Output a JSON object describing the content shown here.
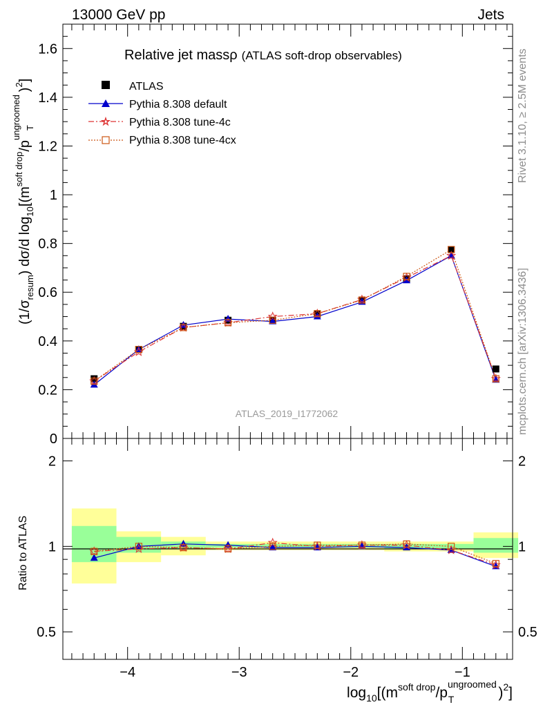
{
  "header": {
    "energy_label": "13000 GeV pp",
    "process_label": "Jets"
  },
  "side_text": {
    "rivet": "Rivet 3.1.10, ≥ 2.5M events",
    "mcplots": "mcplots.cern.ch [arXiv:1306.3436]"
  },
  "watermark": "ATLAS_2019_I1772062",
  "chart_data": [
    {
      "type": "line",
      "title_main": "Relative jet massρ",
      "title_sub": "(ATLAS soft-drop observables)",
      "ylabel": {
        "pre": "(1/σ",
        "sub1": "resum",
        "mid": ") dσ/d log",
        "sub2": "10",
        "post": "[(m",
        "sup1": "soft drop",
        "mid2": "/p",
        "sup2": "ungroomed",
        "sub3": "T",
        "post2": ")",
        "sup3": "2",
        "end": "]"
      },
      "xlim": [
        -4.58,
        -0.55
      ],
      "ylim": [
        0,
        1.7
      ],
      "yticks": [
        "0",
        "0.2",
        "0.4",
        "0.6",
        "0.8",
        "1",
        "1.2",
        "1.4",
        "1.6"
      ],
      "x": [
        -4.3,
        -3.9,
        -3.5,
        -3.1,
        -2.7,
        -2.3,
        -1.9,
        -1.5,
        -1.1,
        -0.7
      ],
      "bins": [
        -4.5,
        -4.1,
        -3.7,
        -3.3,
        -2.9,
        -2.5,
        -2.1,
        -1.7,
        -1.3,
        -0.9,
        -0.5
      ],
      "legend_position": "top-left",
      "series": [
        {
          "name": "ATLAS",
          "color": "#000000",
          "marker": "square",
          "values": [
            0.245,
            0.365,
            0.46,
            0.485,
            0.485,
            0.51,
            0.565,
            0.655,
            0.775,
            0.285
          ]
        },
        {
          "name": "Pythia 8.308 default",
          "color": "#0000cc",
          "marker": "triangle",
          "dash": "",
          "values": [
            0.22,
            0.365,
            0.465,
            0.49,
            0.48,
            0.5,
            0.56,
            0.648,
            0.75,
            0.24
          ]
        },
        {
          "name": "Pythia 8.308 tune-4c",
          "color": "#dd3333",
          "marker": "star",
          "dash": "8,3,2,3",
          "values": [
            0.235,
            0.355,
            0.455,
            0.475,
            0.5,
            0.512,
            0.57,
            0.66,
            0.75,
            0.245
          ]
        },
        {
          "name": "Pythia 8.308 tune-4cx",
          "color": "#cc5511",
          "marker": "opensquare",
          "dash": "2,2",
          "values": [
            0.235,
            0.365,
            0.455,
            0.475,
            0.485,
            0.512,
            0.568,
            0.665,
            0.775,
            0.245
          ]
        }
      ]
    },
    {
      "type": "line",
      "ylabel": "Ratio to ATLAS",
      "xlabel": {
        "pre": "log",
        "sub1": "10",
        "mid": "[(m",
        "sup1": "soft drop",
        "mid2": "/p",
        "sup2": "ungroomed",
        "sub2": "T",
        "post": ")",
        "sup3": "2",
        "end": "]"
      },
      "xticks": [
        "−4",
        "−3",
        "−2",
        "−1"
      ],
      "xtick_values": [
        -4,
        -3,
        -2,
        -1
      ],
      "yticks": [
        "0.5",
        "1",
        "2"
      ],
      "ytick_values": [
        0.5,
        1,
        2
      ],
      "ylim": [
        0.4,
        2.4
      ],
      "yscale": "log",
      "band_green": [
        [
          0.88,
          1.18
        ],
        [
          0.95,
          1.08
        ],
        [
          0.98,
          1.04
        ],
        [
          0.99,
          1.02
        ],
        [
          0.99,
          1.02
        ],
        [
          0.99,
          1.02
        ],
        [
          0.99,
          1.02
        ],
        [
          0.98,
          1.02
        ],
        [
          0.98,
          1.02
        ],
        [
          0.95,
          1.07
        ]
      ],
      "band_yellow": [
        [
          0.74,
          1.36
        ],
        [
          0.88,
          1.13
        ],
        [
          0.93,
          1.08
        ],
        [
          0.97,
          1.04
        ],
        [
          0.97,
          1.04
        ],
        [
          0.97,
          1.04
        ],
        [
          0.97,
          1.04
        ],
        [
          0.96,
          1.04
        ],
        [
          0.96,
          1.04
        ],
        [
          0.91,
          1.12
        ]
      ],
      "series": [
        {
          "name": "Pythia 8.308 default",
          "color": "#0000cc",
          "marker": "triangle",
          "dash": "",
          "values": [
            0.91,
            1.0,
            1.02,
            1.01,
            0.99,
            0.99,
            1.0,
            0.99,
            0.97,
            0.85
          ]
        },
        {
          "name": "Pythia 8.308 tune-4c",
          "color": "#dd3333",
          "marker": "star",
          "dash": "8,3,2,3",
          "values": [
            0.96,
            0.98,
            0.99,
            0.98,
            1.03,
            1.0,
            1.01,
            1.01,
            0.97,
            0.86
          ]
        },
        {
          "name": "Pythia 8.308 tune-4cx",
          "color": "#cc5511",
          "marker": "opensquare",
          "dash": "2,2",
          "values": [
            0.96,
            1.0,
            0.99,
            0.98,
            1.0,
            1.01,
            1.01,
            1.02,
            1.0,
            0.87
          ]
        }
      ]
    }
  ]
}
